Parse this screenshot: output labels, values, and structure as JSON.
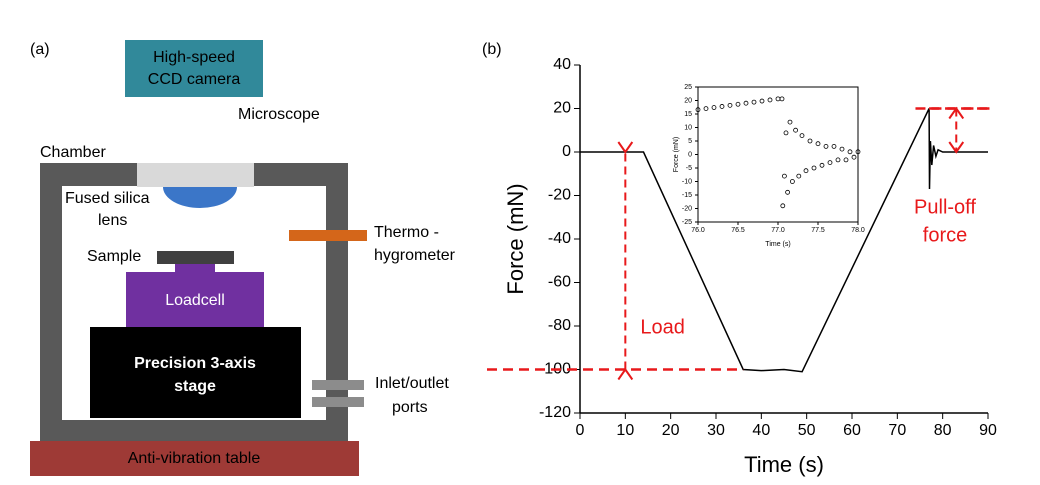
{
  "diagram": {
    "panel_a": "(a)",
    "camera": [
      "High-speed",
      "CCD camera"
    ],
    "microscope": "Microscope",
    "chamber": "Chamber",
    "lens": [
      "Fused silica",
      "lens"
    ],
    "thermo": [
      "Thermo -",
      "hygrometer"
    ],
    "sample": "Sample",
    "loadcell": "Loadcell",
    "stage": [
      "Precision 3-axis",
      "stage"
    ],
    "ports": [
      "Inlet/outlet",
      "ports"
    ],
    "table": "Anti-vibration table",
    "panel_b": "(b)"
  },
  "chart_data": [
    {
      "type": "line",
      "xlabel": "Time (s)",
      "ylabel": "Force (mN)",
      "color": "#000000",
      "x": [
        0,
        14,
        36,
        40,
        45,
        49,
        77,
        77.1,
        77.3,
        77.6,
        78,
        78.5,
        79,
        80,
        90
      ],
      "values": [
        0,
        0,
        -100,
        -100.5,
        -100,
        -101,
        20,
        -17,
        5,
        -6,
        3,
        -2,
        1,
        0,
        0
      ],
      "xlim": [
        0,
        90
      ],
      "xticks": [
        0,
        10,
        20,
        30,
        40,
        50,
        60,
        70,
        80,
        90
      ],
      "ylim": [
        -120,
        40
      ],
      "yticks": [
        40,
        20,
        0,
        -20,
        -40,
        -60,
        -80,
        -100,
        -120
      ],
      "annotations": [
        {
          "text": [
            "Load"
          ],
          "x": 10,
          "from": -100,
          "to": 0,
          "color": "#e8191b"
        },
        {
          "text": [
            "Pull-off",
            "force"
          ],
          "x": 83,
          "from": 20,
          "to": 0,
          "color": "#e8191b"
        }
      ]
    },
    {
      "type": "scatter",
      "xlabel": "Time (s)",
      "ylabel": "Force (mN)",
      "color": "#000000",
      "x": [
        76.0,
        76.1,
        76.2,
        76.3,
        76.4,
        76.5,
        76.6,
        76.7,
        76.8,
        76.9,
        77.0,
        77.05,
        77.06,
        77.08,
        77.1,
        77.12,
        77.15,
        77.18,
        77.22,
        77.26,
        77.3,
        77.35,
        77.4,
        77.45,
        77.5,
        77.55,
        77.6,
        77.65,
        77.7,
        77.75,
        77.8,
        77.85,
        77.9,
        77.95,
        78.0
      ],
      "values": [
        16.6,
        17.0,
        17.4,
        17.8,
        18.2,
        18.6,
        19.0,
        19.4,
        19.8,
        20.2,
        20.6,
        20.6,
        -19,
        -8,
        8,
        -14,
        12,
        -10,
        9,
        -8,
        7,
        -6,
        5,
        -5,
        4,
        -4,
        3,
        -3,
        3,
        -2,
        2,
        -2,
        1,
        -1,
        1
      ],
      "xlim": [
        76.0,
        78.0
      ],
      "xticks": [
        {
          "value": 76.0,
          "label": "76.0"
        },
        {
          "value": 76.5,
          "label": "76.5"
        },
        {
          "value": 77.0,
          "label": "77.0"
        },
        {
          "value": 77.5,
          "label": "77.5"
        },
        {
          "value": 78.0,
          "label": "78.0"
        }
      ],
      "ylim": [
        -25,
        25
      ],
      "yticks": [
        25,
        20,
        15,
        10,
        5,
        0,
        -5,
        -10,
        -15,
        -20,
        -25
      ]
    }
  ]
}
